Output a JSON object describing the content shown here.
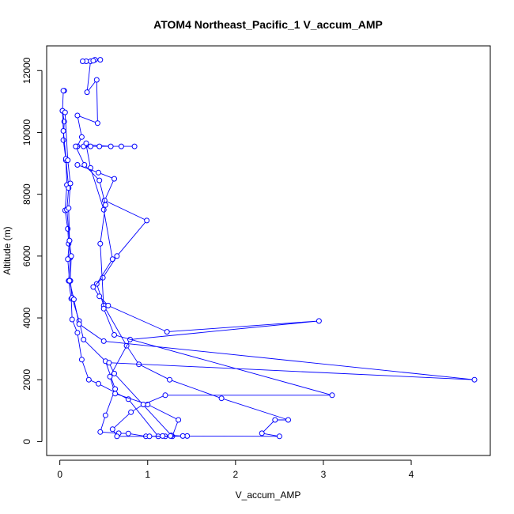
{
  "chart_data": {
    "type": "line",
    "title": "ATOM4 Northeast_Pacific_1 V_accum_AMP",
    "xlabel": "V_accum_AMP",
    "ylabel": "Altitude (m)",
    "xlim": [
      -0.15,
      4.9
    ],
    "ylim": [
      -450,
      12800
    ],
    "xticks": [
      "0",
      "1",
      "2",
      "3",
      "4"
    ],
    "yticks": [
      "0",
      "2000",
      "4000",
      "6000",
      "8000",
      "10000",
      "12000"
    ],
    "grid": false,
    "line_color": "#0000ff",
    "marker": "open-circle",
    "series": [
      {
        "points": [
          [
            0.05,
            11350
          ],
          [
            0.04,
            11350
          ],
          [
            0.03,
            10700
          ],
          [
            0.05,
            10350
          ],
          [
            0.04,
            9750
          ],
          [
            0.07,
            9100
          ],
          [
            0.08,
            8300
          ],
          [
            0.06,
            7480
          ],
          [
            0.09,
            6880
          ],
          [
            0.1,
            6400
          ],
          [
            0.12,
            5950
          ],
          [
            0.1,
            5200
          ],
          [
            0.13,
            4620
          ],
          [
            0.14,
            3950
          ],
          [
            0.2,
            3520
          ],
          [
            0.25,
            2650
          ],
          [
            0.33,
            2000
          ],
          [
            0.44,
            1870
          ],
          [
            0.78,
            1370
          ],
          [
            1.12,
            170
          ],
          [
            1.2,
            170
          ],
          [
            1.45,
            180
          ],
          [
            2.5,
            170
          ],
          [
            2.3,
            270
          ],
          [
            2.45,
            700
          ],
          [
            2.6,
            700
          ],
          [
            1.84,
            1400
          ],
          [
            1.25,
            2000
          ],
          [
            0.9,
            2500
          ],
          [
            0.76,
            3100
          ],
          [
            0.5,
            4400
          ],
          [
            0.42,
            5100
          ],
          [
            0.6,
            5900
          ],
          [
            0.5,
            7500
          ],
          [
            0.35,
            8850
          ],
          [
            0.3,
            9600
          ],
          [
            0.58,
            9550
          ],
          [
            0.7,
            9550
          ],
          [
            0.85,
            9550
          ],
          [
            0.45,
            9550
          ],
          [
            0.2,
            9550
          ],
          [
            0.25,
            9850
          ],
          [
            0.2,
            10550
          ],
          [
            0.43,
            10300
          ],
          [
            0.42,
            11700
          ],
          [
            0.31,
            11300
          ],
          [
            0.35,
            12300
          ],
          [
            0.4,
            12350
          ],
          [
            0.46,
            12350
          ],
          [
            0.38,
            12320
          ],
          [
            0.3,
            12300
          ],
          [
            0.26,
            12300
          ]
        ]
      },
      {
        "points": [
          [
            0.03,
            10700
          ],
          [
            0.04,
            10050
          ],
          [
            0.07,
            9150
          ],
          [
            0.1,
            8200
          ],
          [
            0.08,
            7500
          ],
          [
            0.11,
            6500
          ],
          [
            0.13,
            6000
          ],
          [
            0.12,
            5200
          ],
          [
            0.14,
            4650
          ],
          [
            0.22,
            3900
          ],
          [
            0.27,
            3300
          ],
          [
            0.52,
            2600
          ],
          [
            0.63,
            1700
          ],
          [
            0.52,
            850
          ],
          [
            0.46,
            310
          ],
          [
            0.67,
            270
          ],
          [
            0.78,
            260
          ],
          [
            0.98,
            170
          ],
          [
            1.28,
            170
          ],
          [
            1.35,
            700
          ],
          [
            1.0,
            1200
          ],
          [
            0.63,
            1550
          ],
          [
            0.57,
            2100
          ],
          [
            0.8,
            3300
          ],
          [
            2.95,
            3900
          ],
          [
            1.22,
            3550
          ],
          [
            0.55,
            4400
          ],
          [
            0.45,
            4700
          ],
          [
            0.38,
            5000
          ],
          [
            0.49,
            5300
          ],
          [
            0.65,
            6000
          ],
          [
            0.99,
            7150
          ],
          [
            0.51,
            7800
          ],
          [
            0.62,
            8500
          ],
          [
            0.44,
            8700
          ],
          [
            0.2,
            8950
          ]
        ]
      },
      {
        "points": [
          [
            0.06,
            10650
          ],
          [
            0.09,
            9100
          ],
          [
            0.12,
            8350
          ],
          [
            0.1,
            7550
          ],
          [
            0.11,
            6500
          ],
          [
            0.09,
            5900
          ],
          [
            0.11,
            5200
          ],
          [
            0.16,
            4600
          ],
          [
            0.22,
            3800
          ],
          [
            0.5,
            3250
          ],
          [
            4.72,
            2000
          ],
          [
            0.56,
            2550
          ],
          [
            0.62,
            2200
          ],
          [
            1.27,
            200
          ],
          [
            1.4,
            180
          ],
          [
            1.26,
            180
          ],
          [
            1.17,
            180
          ],
          [
            1.02,
            170
          ],
          [
            0.65,
            170
          ],
          [
            0.6,
            400
          ],
          [
            0.81,
            950
          ],
          [
            0.95,
            1200
          ],
          [
            1.2,
            1500
          ],
          [
            3.1,
            1500
          ],
          [
            0.62,
            3450
          ],
          [
            0.5,
            4300
          ],
          [
            0.46,
            6400
          ],
          [
            0.52,
            7650
          ],
          [
            0.45,
            8450
          ],
          [
            0.28,
            8950
          ],
          [
            0.18,
            9550
          ],
          [
            0.27,
            9550
          ],
          [
            0.35,
            9550
          ],
          [
            0.3,
            9650
          ]
        ]
      }
    ]
  }
}
